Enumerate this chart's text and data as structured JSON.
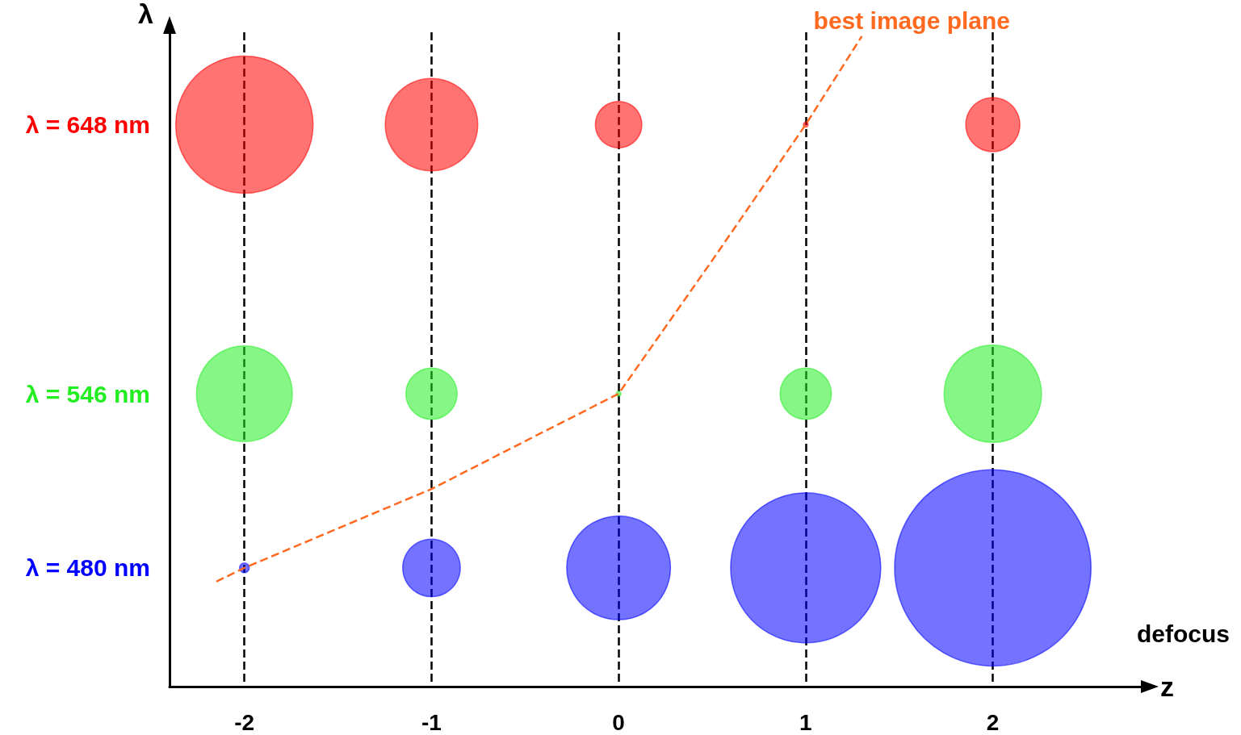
{
  "chart_data": {
    "type": "bubble",
    "xlabel": "z",
    "ylabel": "λ",
    "x": [
      -2,
      -1,
      0,
      1,
      2
    ],
    "xlim": [
      -2.4,
      2.8
    ],
    "xticks": [
      -2,
      -1,
      0,
      1,
      2
    ],
    "ylim": [
      435,
      683
    ],
    "yticks": [
      {
        "value": 480,
        "label": "λ = 480 nm"
      },
      {
        "value": 546,
        "label": "λ = 546 nm"
      },
      {
        "value": 648,
        "label": "λ = 648 nm"
      }
    ],
    "relative": false,
    "grid": "x",
    "series": [
      {
        "color": "#0000ff",
        "values": [
          480,
          480,
          480,
          480,
          480
        ],
        "sizes": [
          0.0024,
          0.086,
          0.279,
          0.584,
          1
        ]
      },
      {
        "color": "#22ee22",
        "values": [
          546,
          546,
          546,
          546,
          546
        ],
        "sizes": [
          0.238,
          0.068,
          0.0006,
          0.068,
          0.246
        ]
      },
      {
        "color": "#ff0000",
        "values": [
          648,
          648,
          648,
          648,
          648
        ],
        "sizes": [
          0.489,
          0.222,
          0.056,
          0.0006,
          0.076
        ]
      },
      {
        "type": "line",
        "color": "#ff6a20",
        "line_style": "dashed",
        "x": [
          -2.15,
          -2,
          -1,
          -0.5,
          0,
          0.5,
          1,
          1.3
        ],
        "values": [
          474.8,
          480,
          509.9,
          528,
          546,
          596.5,
          648,
          681.5
        ]
      }
    ],
    "annotations": [
      "best image plane",
      "defocus"
    ]
  }
}
